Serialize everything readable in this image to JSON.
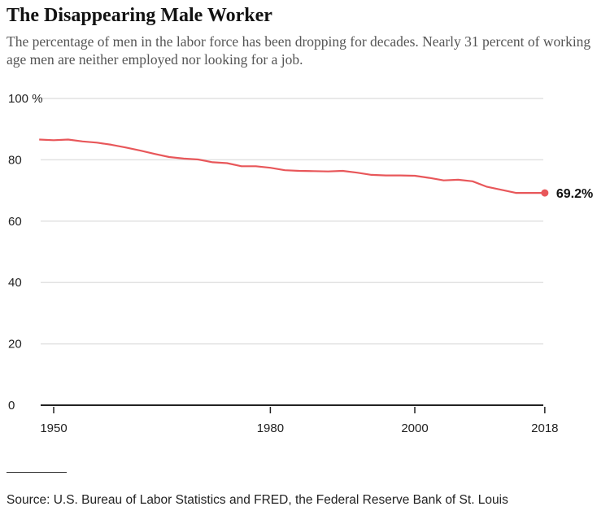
{
  "header": {
    "title": "The Disappearing Male Worker",
    "subtitle": "The percentage of men in the labor force has been dropping for decades. Nearly 31 percent of working age men are neither employed nor looking for a job."
  },
  "chart_data": {
    "type": "line",
    "title": "The Disappearing Male Worker",
    "xlabel": "",
    "ylabel": "",
    "ylim": [
      0,
      100
    ],
    "xlim": [
      1948,
      2018
    ],
    "y_ticks": [
      "100 %",
      "80",
      "60",
      "40",
      "20",
      "0"
    ],
    "y_tick_values": [
      100,
      80,
      60,
      40,
      20,
      0
    ],
    "x_ticks": [
      "1950",
      "1980",
      "2000",
      "2018"
    ],
    "x_tick_values": [
      1950,
      1980,
      2000,
      2018
    ],
    "grid": true,
    "color": "#e8575a",
    "end_label": "69.2%",
    "x": [
      1948,
      1950,
      1952,
      1954,
      1956,
      1958,
      1960,
      1962,
      1964,
      1966,
      1968,
      1970,
      1972,
      1974,
      1976,
      1978,
      1980,
      1982,
      1984,
      1986,
      1988,
      1990,
      1992,
      1994,
      1996,
      1998,
      2000,
      2002,
      2004,
      2006,
      2008,
      2010,
      2012,
      2014,
      2016,
      2018
    ],
    "values": [
      86.6,
      86.4,
      86.6,
      86.0,
      85.6,
      84.9,
      84.0,
      83.0,
      81.9,
      80.9,
      80.4,
      80.1,
      79.2,
      78.9,
      77.9,
      77.9,
      77.4,
      76.6,
      76.4,
      76.3,
      76.2,
      76.4,
      75.8,
      75.1,
      74.9,
      74.9,
      74.8,
      74.1,
      73.3,
      73.5,
      73.0,
      71.2,
      70.2,
      69.2,
      69.2,
      69.2
    ]
  },
  "footer": {
    "source": "Source: U.S. Bureau of Labor Statistics and FRED, the Federal Reserve Bank of St. Louis"
  }
}
